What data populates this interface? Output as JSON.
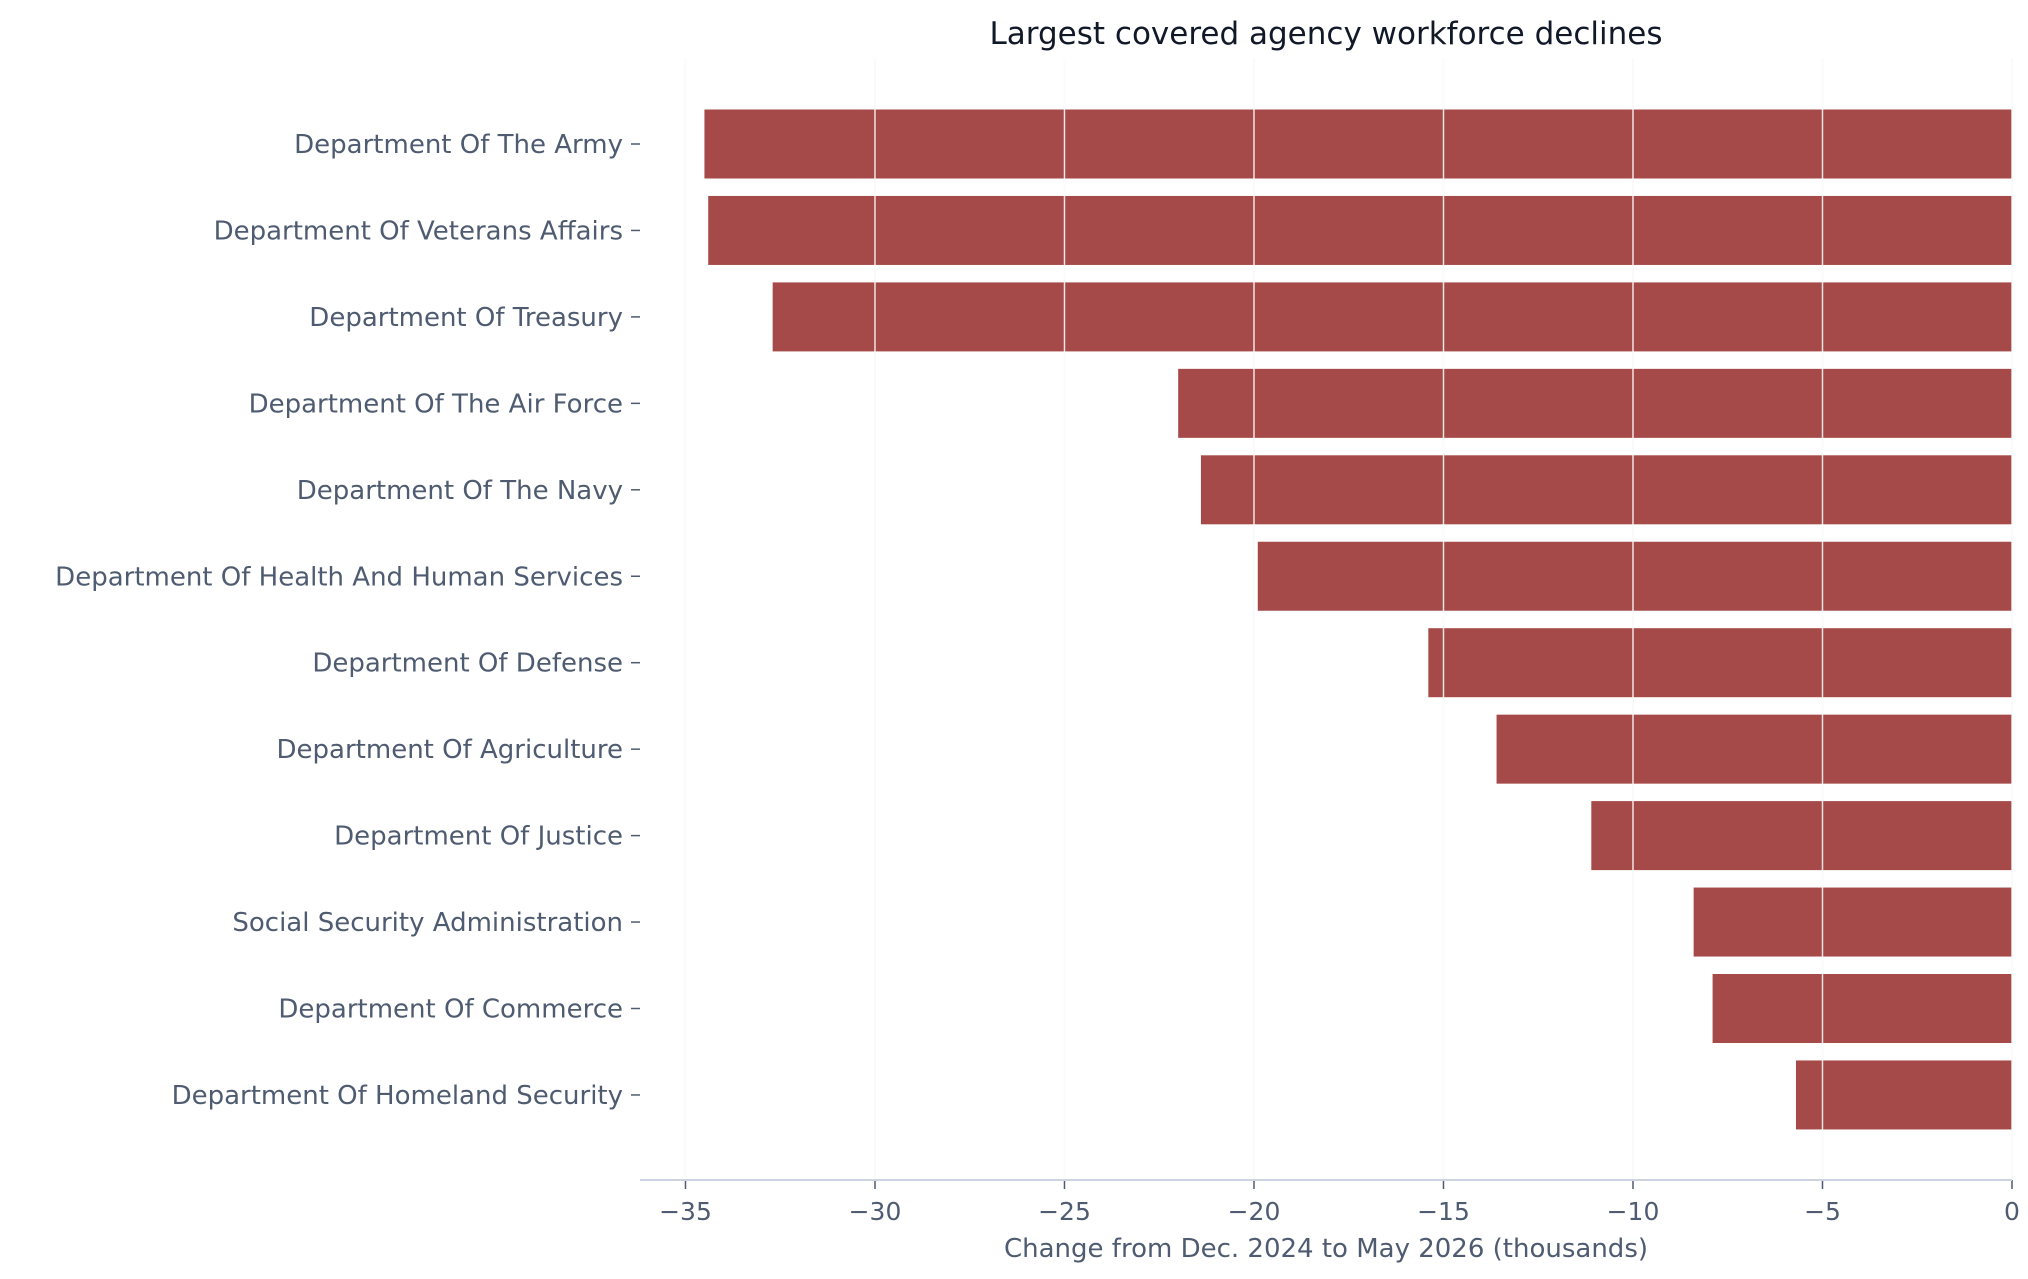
{
  "chart_data": {
    "type": "bar",
    "orientation": "horizontal",
    "title": "Largest covered agency workforce declines",
    "xlabel": "Change from Dec. 2024 to May 2026 (thousands)",
    "ylabel": "",
    "categories": [
      "Department Of The Army",
      "Department Of Veterans Affairs",
      "Department Of Treasury",
      "Department Of The Air Force",
      "Department Of The Navy",
      "Department Of Health And Human Services",
      "Department Of Defense",
      "Department Of Agriculture",
      "Department Of Justice",
      "Social Security Administration",
      "Department Of Commerce",
      "Department Of Homeland Security"
    ],
    "values": [
      -34.5,
      -34.4,
      -32.7,
      -22.0,
      -21.4,
      -19.9,
      -15.4,
      -13.6,
      -11.1,
      -8.4,
      -7.9,
      -5.7
    ],
    "xlim": [
      -36.2,
      0
    ],
    "xticks": [
      -35,
      -30,
      -25,
      -20,
      -15,
      -10,
      -5,
      0
    ],
    "xtick_labels": [
      "−35",
      "−30",
      "−25",
      "−20",
      "−15",
      "−10",
      "−5",
      "0"
    ],
    "grid": "vertical",
    "bar_color": "#a54a48",
    "grid_color": "#e3e6ec",
    "axis_color": "#cdd3e0",
    "label_color": "#4e5b70",
    "title_color": "#111827"
  }
}
